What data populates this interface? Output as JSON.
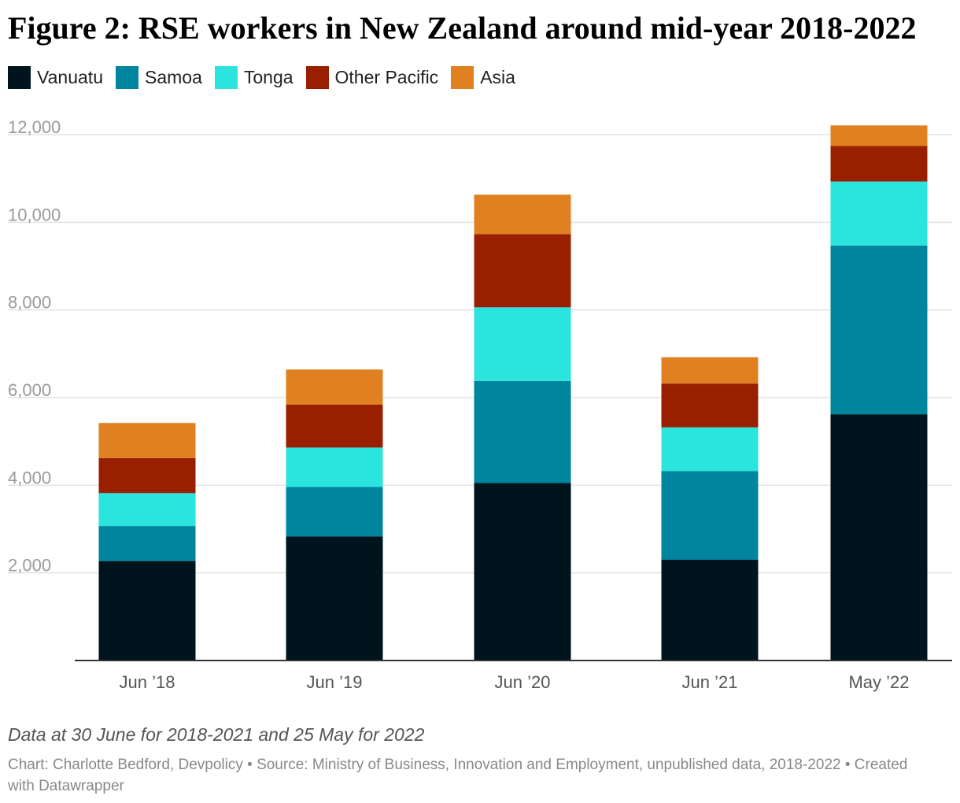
{
  "title": "Figure 2: RSE workers in New Zealand around mid-year 2018-2022",
  "note": "Data at 30 June for 2018-2021 and 25 May for 2022",
  "credit": "Chart: Charlotte Bedford, Devpolicy • Source: Ministry of Business, Innovation and Employment, unpublished data, 2018-2022 • Created with Datawrapper",
  "chart_data": {
    "type": "bar",
    "stacked": true,
    "categories": [
      "Jun ’18",
      "Jun ’19",
      "Jun ’20",
      "Jun ’21",
      "May ’22"
    ],
    "series": [
      {
        "name": "Vanuatu",
        "color": "#00141e",
        "values": [
          2270,
          2830,
          4050,
          2300,
          5620
        ]
      },
      {
        "name": "Samoa",
        "color": "#00859f",
        "values": [
          800,
          1130,
          2330,
          2020,
          3850
        ]
      },
      {
        "name": "Tonga",
        "color": "#2ae4dd",
        "values": [
          750,
          900,
          1680,
          1000,
          1460
        ]
      },
      {
        "name": "Other Pacific",
        "color": "#982000",
        "values": [
          800,
          980,
          1670,
          1000,
          810
        ]
      },
      {
        "name": "Asia",
        "color": "#e08021",
        "values": [
          800,
          800,
          900,
          600,
          470
        ]
      }
    ],
    "ylim": [
      0,
      12000
    ],
    "yticks": [
      2000,
      4000,
      6000,
      8000,
      10000,
      12000
    ],
    "ytick_labels": [
      "2,000",
      "4,000",
      "6,000",
      "8,000",
      "10,000",
      "12,000"
    ],
    "grid": true,
    "legend_position": "top-left"
  }
}
